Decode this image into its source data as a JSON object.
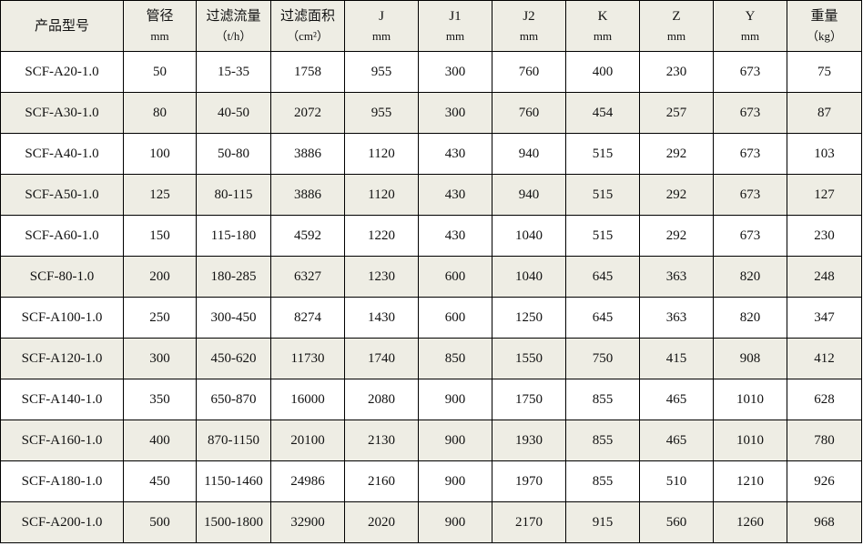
{
  "table": {
    "header": [
      [
        "产品型号"
      ],
      [
        "管径",
        "mm"
      ],
      [
        "过滤流量",
        "（t/h）"
      ],
      [
        "过滤面积",
        "（cm²）"
      ],
      [
        "J",
        "mm"
      ],
      [
        "J1",
        "mm"
      ],
      [
        "J2",
        "mm"
      ],
      [
        "K",
        "mm"
      ],
      [
        "Z",
        "mm"
      ],
      [
        "Y",
        "mm"
      ],
      [
        "重量",
        "（kg）"
      ]
    ],
    "rows": [
      [
        "SCF-A20-1.0",
        50,
        "15-35",
        1758,
        955,
        300,
        760,
        400,
        230,
        673,
        75
      ],
      [
        "SCF-A30-1.0",
        80,
        "40-50",
        2072,
        955,
        300,
        760,
        454,
        257,
        673,
        87
      ],
      [
        "SCF-A40-1.0",
        100,
        "50-80",
        3886,
        1120,
        430,
        940,
        515,
        292,
        673,
        103
      ],
      [
        "SCF-A50-1.0",
        125,
        "80-115",
        3886,
        1120,
        430,
        940,
        515,
        292,
        673,
        127
      ],
      [
        "SCF-A60-1.0",
        150,
        "115-180",
        4592,
        1220,
        430,
        1040,
        515,
        292,
        673,
        230
      ],
      [
        "SCF-80-1.0",
        200,
        "180-285",
        6327,
        1230,
        600,
        1040,
        645,
        363,
        820,
        248
      ],
      [
        "SCF-A100-1.0",
        250,
        "300-450",
        8274,
        1430,
        600,
        1250,
        645,
        363,
        820,
        347
      ],
      [
        "SCF-A120-1.0",
        300,
        "450-620",
        11730,
        1740,
        850,
        1550,
        750,
        415,
        908,
        412
      ],
      [
        "SCF-A140-1.0",
        350,
        "650-870",
        16000,
        2080,
        900,
        1750,
        855,
        465,
        1010,
        628
      ],
      [
        "SCF-A160-1.0",
        400,
        "870-1150",
        20100,
        2130,
        900,
        1930,
        855,
        465,
        1010,
        780
      ],
      [
        "SCF-A180-1.0",
        450,
        "1150-1460",
        24986,
        2160,
        900,
        1970,
        855,
        510,
        1210,
        926
      ],
      [
        "SCF-A200-1.0",
        500,
        "1500-1800",
        32900,
        2020,
        900,
        2170,
        915,
        560,
        1260,
        968
      ]
    ]
  }
}
